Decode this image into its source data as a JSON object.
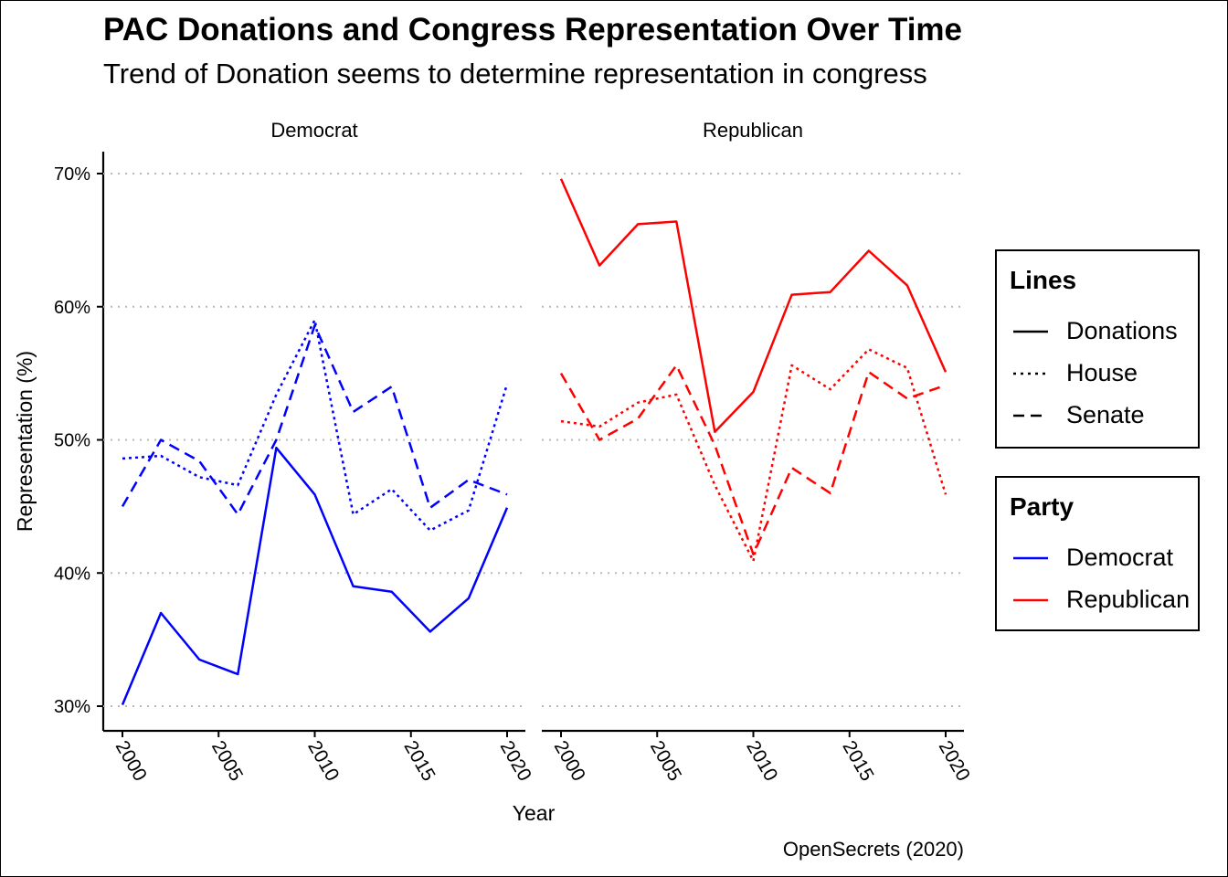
{
  "title": "PAC Donations and Congress Representation Over Time",
  "subtitle": "Trend of Donation seems to determine representation in congress",
  "caption": "OpenSecrets (2020)",
  "legends": {
    "lines": {
      "title": "Lines",
      "items": [
        {
          "label": "Donations",
          "dash": "solid"
        },
        {
          "label": "House",
          "dash": "dotted"
        },
        {
          "label": "Senate",
          "dash": "dashed"
        }
      ]
    },
    "party": {
      "title": "Party",
      "items": [
        {
          "label": "Democrat",
          "color": "#0000ff"
        },
        {
          "label": "Republican",
          "color": "#ff0000"
        }
      ]
    }
  },
  "chart_data": {
    "type": "line",
    "xlabel": "Year",
    "ylabel": "Representation (%)",
    "ylim": [
      30,
      70
    ],
    "yticks": [
      30,
      40,
      50,
      60,
      70
    ],
    "ytick_labels": [
      "30%",
      "40%",
      "50%",
      "60%",
      "70%"
    ],
    "xticks": [
      2000,
      2005,
      2010,
      2015,
      2020
    ],
    "xtick_labels": [
      "2000",
      "2005",
      "2010",
      "2015",
      "2020"
    ],
    "x": [
      2000,
      2002,
      2004,
      2006,
      2008,
      2010,
      2012,
      2014,
      2016,
      2018,
      2020
    ],
    "grid": "horizontal dotted",
    "legend_position": "right",
    "facets": [
      {
        "name": "Democrat",
        "color": "#0000ff",
        "series": [
          {
            "line": "Donations",
            "dash": "solid",
            "values": [
              30.1,
              37.0,
              33.5,
              32.4,
              49.4,
              45.9,
              39.0,
              38.6,
              35.6,
              38.1,
              44.9
            ]
          },
          {
            "line": "House",
            "dash": "dotted",
            "values": [
              48.6,
              48.8,
              47.2,
              46.6,
              53.4,
              59.0,
              44.4,
              46.3,
              43.2,
              44.7,
              54.2
            ]
          },
          {
            "line": "Senate",
            "dash": "dashed",
            "values": [
              45.0,
              50.0,
              48.4,
              44.4,
              50.0,
              58.6,
              52.1,
              54.0,
              44.9,
              47.0,
              45.9
            ]
          }
        ]
      },
      {
        "name": "Republican",
        "color": "#ff0000",
        "series": [
          {
            "line": "Donations",
            "dash": "solid",
            "values": [
              69.6,
              63.1,
              66.2,
              66.4,
              50.6,
              53.6,
              60.9,
              61.1,
              64.2,
              61.6,
              55.1
            ]
          },
          {
            "line": "House",
            "dash": "dotted",
            "values": [
              51.4,
              51.0,
              52.8,
              53.4,
              46.6,
              40.9,
              55.6,
              53.8,
              56.8,
              55.4,
              45.9
            ]
          },
          {
            "line": "Senate",
            "dash": "dashed",
            "values": [
              55.0,
              50.0,
              51.6,
              55.6,
              49.6,
              41.4,
              47.9,
              46.0,
              55.1,
              53.1,
              54.1
            ]
          }
        ]
      }
    ]
  }
}
